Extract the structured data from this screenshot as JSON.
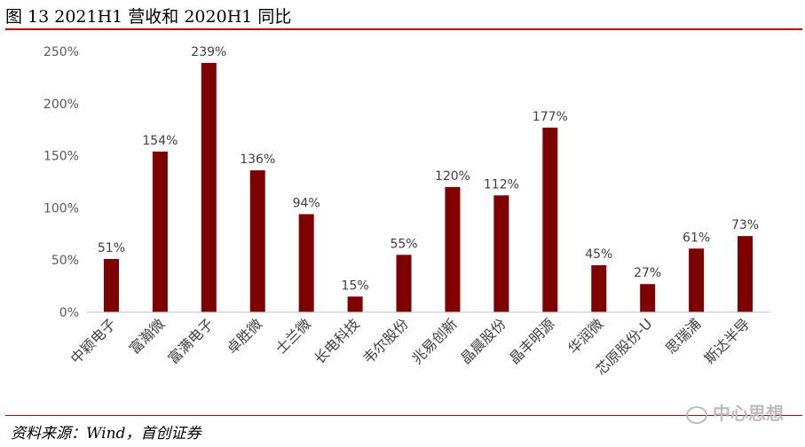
{
  "title": "图 13 2021H1 营收和 2020H1 同比",
  "source": "资料来源：Wind，首创证券",
  "watermark": "中心思想",
  "colors": {
    "bar": "#7f0000",
    "rule": "#c00000"
  },
  "chart_data": {
    "type": "bar",
    "title": "",
    "xlabel": "",
    "ylabel": "",
    "categories": [
      "中颖电子",
      "富瀚微",
      "富满电子",
      "卓胜微",
      "士兰微",
      "长电科技",
      "韦尔股份",
      "兆易创新",
      "晶晨股份",
      "晶丰明源",
      "华润微",
      "芯原股份-U",
      "思瑞浦",
      "斯达半导"
    ],
    "values": [
      51,
      154,
      239,
      136,
      94,
      15,
      55,
      120,
      112,
      177,
      45,
      27,
      61,
      73
    ],
    "value_labels": [
      "51%",
      "154%",
      "239%",
      "136%",
      "94%",
      "15%",
      "55%",
      "120%",
      "112%",
      "177%",
      "45%",
      "27%",
      "61%",
      "73%"
    ],
    "yticks": [
      0,
      50,
      100,
      150,
      200,
      250
    ],
    "ytick_labels": [
      "0%",
      "50%",
      "100%",
      "150%",
      "200%",
      "250%"
    ],
    "ylim": [
      0,
      250
    ],
    "grid": false,
    "legend": "none"
  }
}
